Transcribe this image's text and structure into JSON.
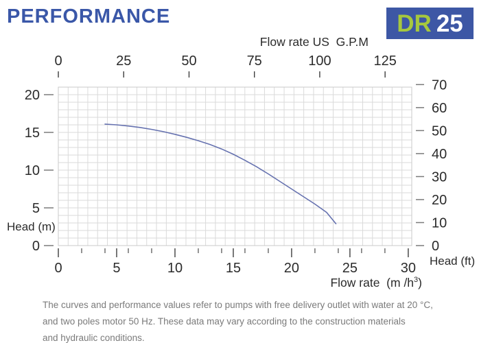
{
  "header": {
    "title": "PERFORMANCE",
    "model": {
      "series": "DR",
      "size": "25"
    }
  },
  "chart_data": {
    "type": "line",
    "title": "DR 25 pump performance curve",
    "series": [
      {
        "name": "head-vs-flow-curve",
        "color": "#6571af",
        "points": [
          [
            4,
            16.1
          ],
          [
            5,
            16.0
          ],
          [
            6,
            15.85
          ],
          [
            7,
            15.65
          ],
          [
            8,
            15.4
          ],
          [
            9,
            15.1
          ],
          [
            10,
            14.75
          ],
          [
            11,
            14.35
          ],
          [
            12,
            13.9
          ],
          [
            13,
            13.4
          ],
          [
            14,
            12.8
          ],
          [
            15,
            12.1
          ],
          [
            16,
            11.3
          ],
          [
            17,
            10.45
          ],
          [
            18,
            9.5
          ],
          [
            19,
            8.5
          ],
          [
            20,
            7.5
          ],
          [
            21,
            6.5
          ],
          [
            22,
            5.5
          ],
          [
            23,
            4.4
          ],
          [
            23.8,
            2.9
          ]
        ]
      }
    ],
    "axes": {
      "top": {
        "label": "Flow rate US  G.P.M",
        "ticks": [
          0,
          25,
          50,
          75,
          100,
          125
        ],
        "range": [
          0,
          135.2
        ]
      },
      "bottom": {
        "label": "Flow rate  (m /h³)",
        "label_parts": {
          "pre": "Flow rate  (m /h",
          "sup": "3",
          "post": ")"
        },
        "ticks": [
          0,
          5,
          10,
          15,
          20,
          25,
          30
        ],
        "minor_ticks": [
          2,
          4,
          6,
          8,
          12,
          14,
          16,
          18,
          22,
          24,
          26,
          28
        ],
        "range": [
          0,
          30.3
        ]
      },
      "left": {
        "label": "Head (m)",
        "ticks": [
          0,
          5,
          10,
          15,
          20
        ],
        "range": [
          0,
          21
        ]
      },
      "right": {
        "label": "Head (ft)",
        "ticks": [
          0,
          10,
          20,
          30,
          40,
          50,
          60,
          70
        ],
        "range": [
          0,
          68.9
        ]
      }
    },
    "grid": {
      "cols": 36,
      "rows": 21,
      "visible": true
    },
    "legend": {
      "visible": false
    }
  },
  "footer": {
    "lines": [
      "The curves and performance values refer to pumps with free delivery outlet with water at 20 °C,",
      "and two poles motor 50 Hz. These data may vary according to the construction materials",
      "and hydraulic conditions."
    ]
  },
  "colors": {
    "title_blue": "#3a57a8",
    "badge_background": "#3d57a5",
    "badge_series_green": "#a6c83e",
    "badge_number_white": "#ffffff",
    "curve_blue": "#6571af",
    "grid_line": "#dadada",
    "grid_border": "#c9c9c9",
    "tick_mark": "#3c3c3c",
    "dash_mark": "#7a7a7a",
    "axis_text": "#2b2b2b",
    "footer_text": "#7a7a7a"
  }
}
